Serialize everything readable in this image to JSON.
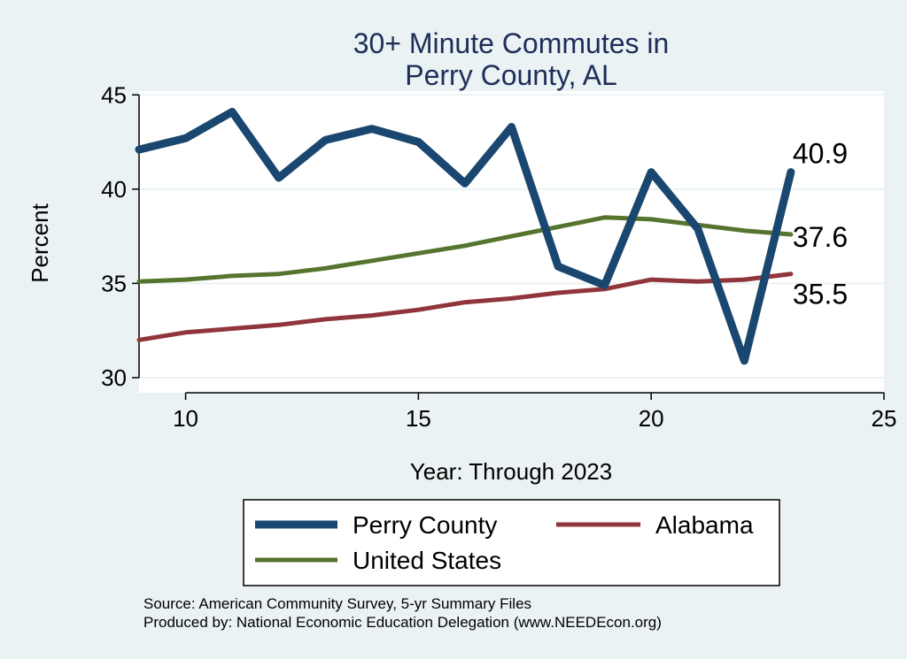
{
  "chart_data": {
    "type": "line",
    "title": [
      "30+ Minute Commutes in",
      "Perry County, AL"
    ],
    "xlabel": "Year: Through 2023",
    "ylabel": "Percent",
    "xlim": [
      9,
      25
    ],
    "ylim": [
      29.2,
      45.2
    ],
    "xticks": [
      10,
      15,
      20,
      25
    ],
    "yticks": [
      30,
      35,
      40,
      45
    ],
    "grid": true,
    "series": [
      {
        "name": "Perry County",
        "color": "#1a476f",
        "x": [
          9,
          10,
          11,
          12,
          13,
          14,
          15,
          16,
          17,
          18,
          19,
          20,
          21,
          22,
          23
        ],
        "values": [
          42.1,
          42.7,
          44.1,
          40.6,
          42.6,
          43.2,
          42.5,
          40.3,
          43.3,
          35.9,
          34.9,
          40.9,
          37.9,
          30.9,
          40.9
        ],
        "end_label": "40.9"
      },
      {
        "name": "Alabama",
        "color": "#90353b",
        "x": [
          9,
          10,
          11,
          12,
          13,
          14,
          15,
          16,
          17,
          18,
          19,
          20,
          21,
          22,
          23
        ],
        "values": [
          32.0,
          32.4,
          32.6,
          32.8,
          33.1,
          33.3,
          33.6,
          34.0,
          34.2,
          34.5,
          34.7,
          35.2,
          35.1,
          35.2,
          35.5
        ],
        "end_label": "35.5"
      },
      {
        "name": "United States",
        "color": "#55752f",
        "x": [
          9,
          10,
          11,
          12,
          13,
          14,
          15,
          16,
          17,
          18,
          19,
          20,
          21,
          22,
          23
        ],
        "values": [
          35.1,
          35.2,
          35.4,
          35.5,
          35.8,
          36.2,
          36.6,
          37.0,
          37.5,
          38.0,
          38.5,
          38.4,
          38.1,
          37.8,
          37.6
        ],
        "end_label": "37.6"
      }
    ],
    "legend": [
      "Perry County",
      "Alabama",
      "United States"
    ],
    "legend_position": "bottom"
  },
  "source": {
    "line1": "Source: American Community Survey, 5-yr Summary Files",
    "line2": "Produced by: National Economic Education Delegation (www.NEEDEcon.org)"
  }
}
